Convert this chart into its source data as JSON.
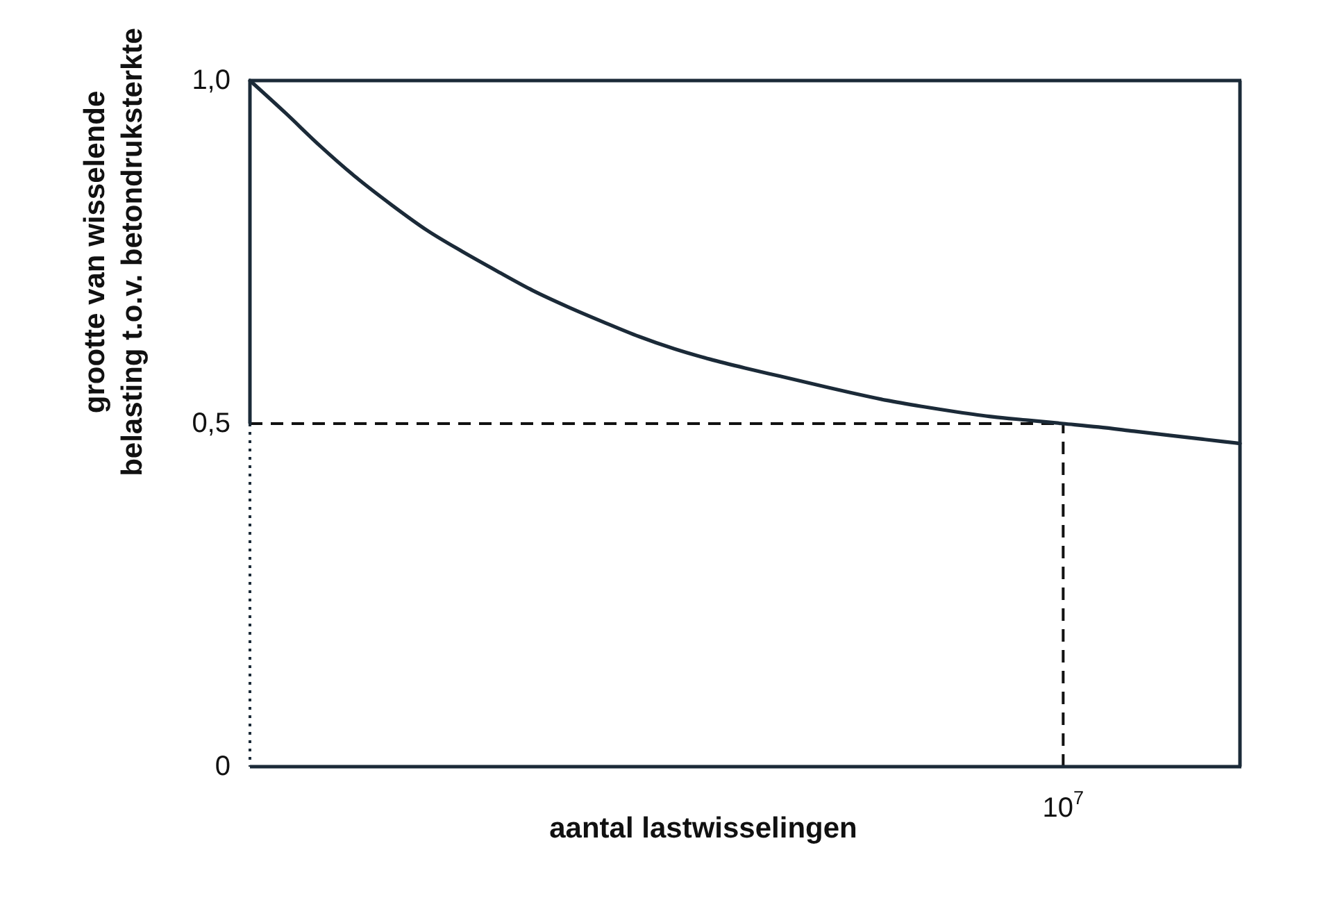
{
  "chart_data": {
    "type": "line",
    "xlabel": "aantal lastwisselingen",
    "ylabel": "grootte van wisselende\nbelasting t.o.v. betondruksterkte",
    "categories": [
      null,
      null,
      null,
      null,
      null,
      null,
      null,
      null,
      null,
      null,
      null,
      null,
      null,
      null,
      null,
      null,
      null,
      null,
      null,
      null,
      null,
      null,
      null,
      "10$^{7}$",
      null,
      null,
      null,
      null,
      null
    ],
    "series": [
      {
        "color": "#1b2a38",
        "values": [
          1.0,
          0.953,
          0.904,
          0.859,
          0.819,
          0.782,
          0.751,
          0.722,
          0.694,
          0.67,
          0.648,
          0.627,
          0.609,
          0.594,
          0.581,
          0.569,
          0.557,
          0.545,
          0.534,
          0.525,
          0.517,
          0.51,
          0.505,
          0.5,
          0.495,
          0.489,
          0.483,
          0.477,
          0.471
        ]
      }
    ],
    "ylim": [
      0,
      1
    ],
    "yticks": [
      0,
      {
        "value": 0.5,
        "label": "0,5"
      },
      {
        "value": 1,
        "label": "1,0"
      }
    ],
    "ref_lines": [
      {
        "axis": "y",
        "value": 0.5,
        "line_style": "dashed",
        "color": "#111111"
      },
      {
        "axis": "x",
        "value": "10$^{7}$",
        "line_style": "dashed",
        "color": "#111111"
      }
    ]
  }
}
